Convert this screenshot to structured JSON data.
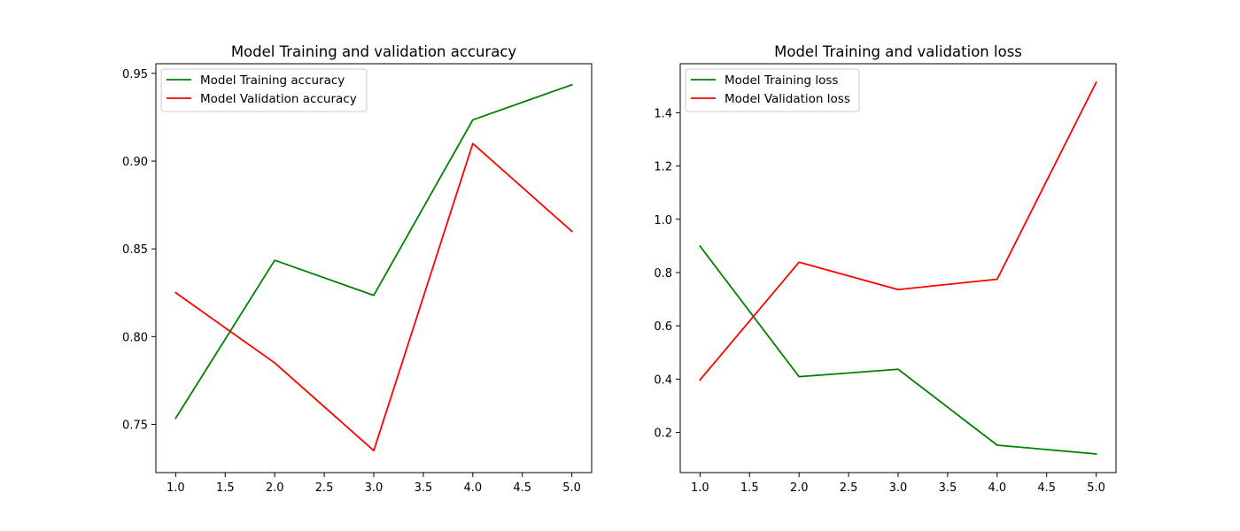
{
  "chart_data": [
    {
      "type": "line",
      "title": "Model Training and validation accuracy",
      "xlabel": "",
      "ylabel": "",
      "x": [
        1,
        2,
        3,
        4,
        5
      ],
      "xlim": [
        0.8,
        5.2
      ],
      "ylim": [
        0.7225,
        0.9555
      ],
      "xticks": [
        1.0,
        1.5,
        2.0,
        2.5,
        3.0,
        3.5,
        4.0,
        4.5,
        5.0
      ],
      "xtick_labels": [
        "1.0",
        "1.5",
        "2.0",
        "2.5",
        "3.0",
        "3.5",
        "4.0",
        "4.5",
        "5.0"
      ],
      "yticks": [
        0.75,
        0.8,
        0.85,
        0.9,
        0.95
      ],
      "ytick_labels": [
        "0.75",
        "0.80",
        "0.85",
        "0.90",
        "0.95"
      ],
      "grid": false,
      "legend_position": "upper left",
      "series": [
        {
          "name": "Model Training accuracy",
          "color": "#008000",
          "values": [
            0.7535,
            0.8435,
            0.8235,
            0.9235,
            0.9435
          ]
        },
        {
          "name": "Model Validation accuracy",
          "color": "#ff0000",
          "values": [
            0.825,
            0.785,
            0.735,
            0.91,
            0.86
          ]
        }
      ]
    },
    {
      "type": "line",
      "title": "Model Training and validation loss",
      "xlabel": "",
      "ylabel": "",
      "x": [
        1,
        2,
        3,
        4,
        5
      ],
      "xlim": [
        0.8,
        5.2
      ],
      "ylim": [
        0.049,
        1.584
      ],
      "xticks": [
        1.0,
        1.5,
        2.0,
        2.5,
        3.0,
        3.5,
        4.0,
        4.5,
        5.0
      ],
      "xtick_labels": [
        "1.0",
        "1.5",
        "2.0",
        "2.5",
        "3.0",
        "3.5",
        "4.0",
        "4.5",
        "5.0"
      ],
      "yticks": [
        0.2,
        0.4,
        0.6,
        0.8,
        1.0,
        1.2,
        1.4
      ],
      "ytick_labels": [
        "0.2",
        "0.4",
        "0.6",
        "0.8",
        "1.0",
        "1.2",
        "1.4"
      ],
      "grid": false,
      "legend_position": "upper left",
      "series": [
        {
          "name": "Model Training loss",
          "color": "#008000",
          "values": [
            0.899,
            0.409,
            0.437,
            0.152,
            0.119
          ]
        },
        {
          "name": "Model Validation loss",
          "color": "#ff0000",
          "values": [
            0.397,
            0.839,
            0.736,
            0.775,
            1.514
          ]
        }
      ]
    }
  ]
}
